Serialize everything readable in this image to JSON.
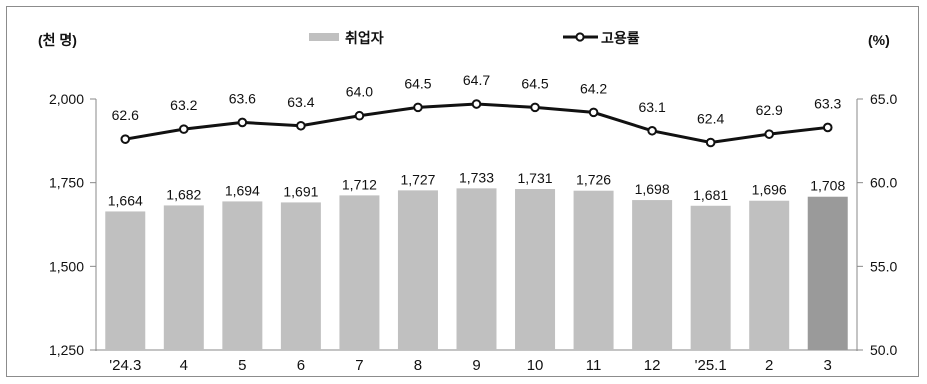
{
  "chart_data": {
    "type": "bar+line",
    "left_unit": "(천 명)",
    "right_unit": "(%)",
    "categories": [
      "'24.3",
      "4",
      "5",
      "6",
      "7",
      "8",
      "9",
      "10",
      "11",
      "12",
      "'25.1",
      "2",
      "3"
    ],
    "series": [
      {
        "name": "취업자",
        "type": "bar",
        "axis": "left",
        "values": [
          1664,
          1682,
          1694,
          1691,
          1712,
          1727,
          1733,
          1731,
          1726,
          1698,
          1681,
          1696,
          1708
        ],
        "labels": [
          "1,664",
          "1,682",
          "1,694",
          "1,691",
          "1,712",
          "1,727",
          "1,733",
          "1,731",
          "1,726",
          "1,698",
          "1,681",
          "1,696",
          "1,708"
        ]
      },
      {
        "name": "고용률",
        "type": "line",
        "axis": "right",
        "values": [
          62.6,
          63.2,
          63.6,
          63.4,
          64.0,
          64.5,
          64.7,
          64.5,
          64.2,
          63.1,
          62.4,
          62.9,
          63.3
        ],
        "labels": [
          "62.6",
          "63.2",
          "63.6",
          "63.4",
          "64.0",
          "64.5",
          "64.7",
          "64.5",
          "64.2",
          "63.1",
          "62.4",
          "62.9",
          "63.3"
        ]
      }
    ],
    "left_axis": {
      "range": [
        1250,
        2000
      ],
      "ticks": [
        1250,
        1500,
        1750,
        2000
      ],
      "tick_labels": [
        "1,250",
        "1,500",
        "1,750",
        "2,000"
      ]
    },
    "right_axis": {
      "range": [
        50.0,
        65.0
      ],
      "ticks": [
        50.0,
        55.0,
        60.0,
        65.0
      ],
      "tick_labels": [
        "50.0",
        "55.0",
        "60.0",
        "65.0"
      ]
    },
    "legend_position": "top-center",
    "grid": false,
    "colors": {
      "bar": "#c0c0c0",
      "bar_highlight": "#9a9a9a",
      "line": "#111111",
      "marker_fill": "#ffffff"
    }
  }
}
